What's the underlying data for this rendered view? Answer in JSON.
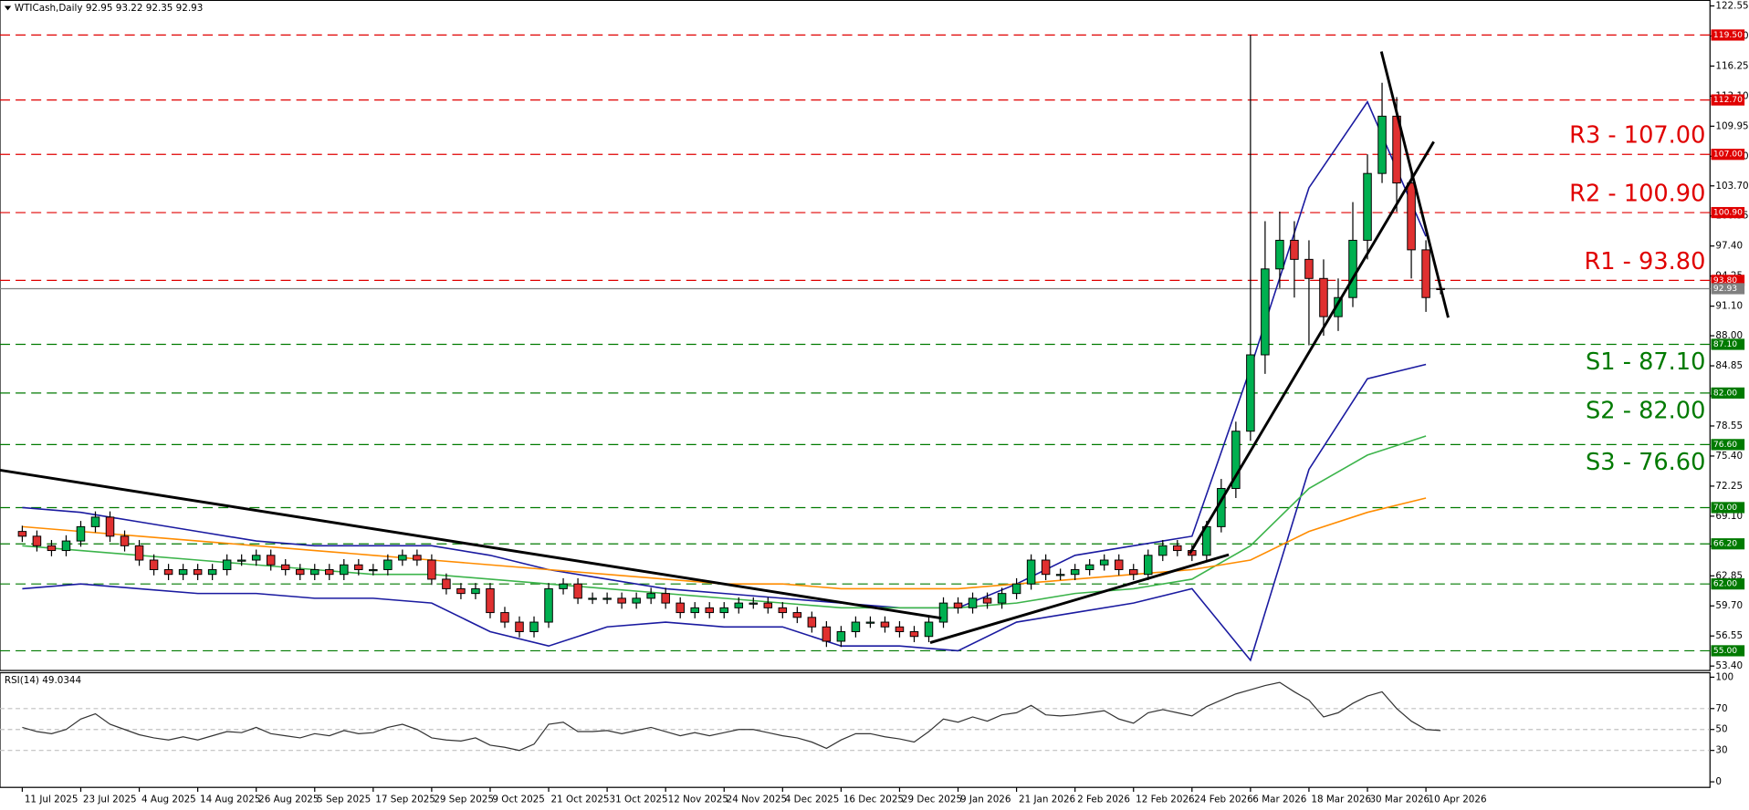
{
  "chart_data": {
    "type": "candlestick",
    "title": "WTICash,Daily  92.95 93.22 92.35 92.93",
    "categories": [
      "11 Jul 2025",
      null,
      null,
      null,
      "23 Jul 2025",
      null,
      null,
      null,
      "4 Aug 2025",
      null,
      null,
      null,
      "14 Aug 2025",
      null,
      null,
      null,
      "26 Aug 2025",
      null,
      null,
      null,
      "5 Sep 2025",
      null,
      null,
      null,
      "17 Sep 2025",
      null,
      null,
      null,
      "29 Sep 2025",
      null,
      null,
      null,
      "9 Oct 2025",
      null,
      null,
      null,
      "21 Oct 2025",
      null,
      null,
      null,
      "31 Oct 2025",
      null,
      null,
      null,
      "12 Nov 2025",
      null,
      null,
      null,
      "24 Nov 2025",
      null,
      null,
      null,
      "4 Dec 2025",
      null,
      null,
      null,
      "16 Dec 2025",
      null,
      null,
      null,
      "29 Dec 2025",
      null,
      null,
      null,
      "9 Jan 2026",
      null,
      null,
      null,
      "21 Jan 2026",
      null,
      null,
      null,
      "2 Feb 2026",
      null,
      null,
      null,
      "12 Feb 2026",
      null,
      null,
      null,
      "24 Feb 2026",
      null,
      null,
      null,
      "6 Mar 2026",
      null,
      null,
      null,
      "18 Mar 2026",
      null,
      null,
      null,
      "30 Mar 2026",
      null,
      null,
      null,
      "10 Apr 2026",
      null
    ],
    "open": [
      67.5,
      67,
      66,
      65.5,
      66.5,
      68,
      69,
      67,
      66,
      64.5,
      63.5,
      63,
      63.5,
      63,
      63.5,
      64.5,
      64.5,
      65,
      64,
      63.5,
      63,
      63.5,
      63,
      64,
      63.5,
      63.5,
      64.5,
      65,
      64.5,
      62.5,
      61.5,
      61,
      61.5,
      59,
      58,
      57,
      58,
      61.5,
      62,
      60.5,
      60.5,
      60.5,
      60,
      60.5,
      61,
      60,
      59,
      59.5,
      59,
      59.5,
      60,
      60,
      59.5,
      59,
      58.5,
      57.5,
      56,
      57,
      58,
      58,
      57.5,
      57,
      56.5,
      58,
      60,
      59.5,
      60.5,
      60,
      61,
      62,
      64.5,
      63,
      63,
      63.5,
      64,
      64.5,
      63.5,
      63,
      65,
      66,
      65.5,
      65,
      68,
      72,
      78,
      86,
      95,
      98,
      96,
      94,
      90,
      92,
      98,
      105,
      111,
      104,
      97,
      92.95
    ],
    "high": [
      68.1,
      67.6,
      66.6,
      67.1,
      68.6,
      69.6,
      69.6,
      67.6,
      66.6,
      65.1,
      64.1,
      64.1,
      64.1,
      64.1,
      65.1,
      65.1,
      65.6,
      65.6,
      64.6,
      64.1,
      64.1,
      64.1,
      64.6,
      64.6,
      64.1,
      65.1,
      65.6,
      65.6,
      65.1,
      63.1,
      62.1,
      62.1,
      62.1,
      59.6,
      58.6,
      58.6,
      62.1,
      62.6,
      62.6,
      61.1,
      61.1,
      61.1,
      61.1,
      61.6,
      61.6,
      60.6,
      60.1,
      60.1,
      60.1,
      60.6,
      60.6,
      60.6,
      60.1,
      59.6,
      59.1,
      58.1,
      57.6,
      58.6,
      58.6,
      58.6,
      58.1,
      57.6,
      58.6,
      60.6,
      60.6,
      61.1,
      61.1,
      61.6,
      62.6,
      65.1,
      65.1,
      63.6,
      64.1,
      64.6,
      65.1,
      65.1,
      64.1,
      65.6,
      66.6,
      66.6,
      66.1,
      68.6,
      73,
      79,
      119.5,
      100,
      101,
      100,
      98,
      96,
      94,
      102,
      107,
      114.5,
      113,
      105,
      98,
      93.22
    ],
    "low": [
      66.4,
      65.4,
      64.9,
      64.9,
      65.9,
      67.4,
      66.4,
      65.4,
      63.9,
      62.9,
      62.4,
      62.4,
      62.4,
      62.4,
      62.9,
      63.9,
      63.9,
      63.4,
      62.9,
      62.4,
      62.4,
      62.4,
      62.4,
      62.9,
      62.9,
      62.9,
      63.9,
      63.9,
      61.9,
      60.9,
      60.4,
      60.4,
      58.4,
      57.4,
      56.4,
      56.4,
      57.4,
      60.9,
      59.9,
      59.9,
      59.9,
      59.4,
      59.4,
      59.9,
      59.4,
      58.4,
      58.4,
      58.4,
      58.4,
      58.9,
      59.4,
      58.9,
      58.4,
      57.9,
      56.9,
      55.4,
      55.4,
      56.4,
      57.4,
      56.9,
      56.4,
      55.9,
      55.9,
      57.4,
      58.9,
      58.9,
      59.4,
      59.4,
      60.4,
      61.4,
      62.4,
      62.4,
      62.4,
      62.9,
      63.4,
      62.9,
      62.4,
      62.4,
      64.4,
      64.9,
      64.4,
      64.4,
      67.4,
      71,
      77,
      84,
      93,
      92,
      87,
      88,
      88.5,
      91,
      96,
      104,
      101,
      94,
      90.5,
      92.35
    ],
    "close": [
      67,
      66,
      65.5,
      66.5,
      68,
      69,
      67,
      66,
      64.5,
      63.5,
      63,
      63.5,
      63,
      63.5,
      64.5,
      64.5,
      65,
      64,
      63.5,
      63,
      63.5,
      63,
      64,
      63.5,
      63.5,
      64.5,
      65,
      64.5,
      62.5,
      61.5,
      61,
      61.5,
      59,
      58,
      57,
      58,
      61.5,
      62,
      60.5,
      60.5,
      60.5,
      60,
      60.5,
      61,
      60,
      59,
      59.5,
      59,
      59.5,
      60,
      60,
      59.5,
      59,
      58.5,
      57.5,
      56,
      57,
      58,
      58,
      57.5,
      57,
      56.5,
      58,
      60,
      59.5,
      60.5,
      60,
      61,
      62,
      64.5,
      63,
      63,
      63.5,
      64,
      64.5,
      63.5,
      63,
      65,
      66,
      65.5,
      65,
      68,
      72,
      78,
      86,
      95,
      98,
      96,
      94,
      90,
      92,
      98,
      105,
      111,
      104,
      97,
      92,
      92.93
    ],
    "up_color": "#00b050",
    "down_color": "#e03030",
    "ylim": [
      53.4,
      122.55
    ],
    "yticks": [
      {
        "value": 53.4,
        "label": "53.40"
      },
      {
        "value": 56.55,
        "label": "56.55"
      },
      {
        "value": 59.7,
        "label": "59.70"
      },
      {
        "value": 62.85,
        "label": "62.85"
      },
      {
        "value": 65.95,
        "label": "65.95"
      },
      {
        "value": 69.1,
        "label": "69.10"
      },
      {
        "value": 72.25,
        "label": "72.25"
      },
      {
        "value": 75.4,
        "label": "75.40"
      },
      {
        "value": 78.55,
        "label": "78.55"
      },
      {
        "value": 81.7,
        "label": "81.70"
      },
      {
        "value": 84.85,
        "label": "84.85"
      },
      {
        "value": 88,
        "label": "88.00"
      },
      {
        "value": 91.1,
        "label": "91.10"
      },
      {
        "value": 94.25,
        "label": "94.25"
      },
      {
        "value": 97.4,
        "label": "97.40"
      },
      {
        "value": 100.55,
        "label": "100.55"
      },
      {
        "value": 103.7,
        "label": "103.70"
      },
      {
        "value": 106.8,
        "label": "106.80"
      },
      {
        "value": 109.95,
        "label": "109.95"
      },
      {
        "value": 113.1,
        "label": "113.10"
      },
      {
        "value": 116.25,
        "label": "116.25"
      },
      {
        "value": 119.4,
        "label": "119.40"
      },
      {
        "value": 122.55,
        "label": "122.55"
      }
    ],
    "levels": [
      {
        "value": 119.5,
        "label": "119.50",
        "color": "#e00000"
      },
      {
        "value": 112.7,
        "label": "112.70",
        "color": "#e00000"
      },
      {
        "value": 107,
        "label": "107.00",
        "color": "#e00000",
        "annotation": "R3 - 107.00"
      },
      {
        "value": 100.9,
        "label": "100.90",
        "color": "#e00000",
        "annotation": "R2 - 100.90"
      },
      {
        "value": 93.8,
        "label": "93.80",
        "color": "#e00000",
        "annotation": "R1 - 93.80"
      },
      {
        "value": 87.1,
        "label": "87.10",
        "color": "#007a00",
        "annotation": "S1 - 87.10"
      },
      {
        "value": 82,
        "label": "82.00",
        "color": "#007a00",
        "annotation": "S2 - 82.00"
      },
      {
        "value": 76.6,
        "label": "76.60",
        "color": "#007a00",
        "annotation": "S3 - 76.60"
      },
      {
        "value": 70,
        "label": "70.00",
        "color": "#007a00"
      },
      {
        "value": 66.2,
        "label": "66.20",
        "color": "#007a00"
      },
      {
        "value": 62,
        "label": "62.00",
        "color": "#007a00"
      },
      {
        "value": 55,
        "label": "55.00",
        "color": "#007a00"
      }
    ],
    "current": {
      "value": 92.93,
      "label": "92.93",
      "color": "#808080"
    },
    "indicators": [
      {
        "color": "#1a1aa0",
        "values": [
          70,
          69.5,
          68.5,
          67.5,
          66.5,
          66,
          66,
          66,
          65,
          63.5,
          62.5,
          61.5,
          61,
          60.5,
          60,
          59.5,
          59.5,
          62,
          65,
          66,
          67,
          84.6,
          103.5,
          112.5,
          98.4
        ]
      },
      {
        "color": "#1a1aa0",
        "values": [
          61.5,
          62,
          61.5,
          61,
          61,
          60.5,
          60.5,
          60,
          57,
          55.5,
          57.5,
          58,
          57.5,
          57.5,
          55.5,
          55.5,
          55,
          58,
          59,
          60,
          61.5,
          54,
          74,
          83.5,
          85
        ]
      },
      {
        "color": "#3cb44b",
        "values": [
          66,
          65.5,
          65,
          64.5,
          64,
          63.5,
          63,
          63,
          62.5,
          62,
          61.5,
          61,
          60.5,
          60,
          59.5,
          59.5,
          59.5,
          60,
          61,
          61.5,
          62.5,
          66,
          72,
          75.5,
          77.5
        ]
      },
      {
        "color": "#ff8c00",
        "values": [
          68,
          67.5,
          67,
          66.5,
          66,
          65.5,
          65,
          64.5,
          64,
          63.5,
          63,
          62.5,
          62,
          62,
          61.5,
          61.5,
          61.5,
          62,
          62.5,
          63,
          63.5,
          64.5,
          67.5,
          69.5,
          71
        ]
      }
    ],
    "rsi": {
      "type": "line",
      "title": "RSI(14) 49.0344",
      "color": "#333333",
      "ylim": [
        0,
        100
      ],
      "yticks": [
        0,
        30,
        50,
        70,
        100
      ],
      "values": [
        52,
        48,
        46,
        50,
        60,
        65,
        55,
        50,
        45,
        42,
        40,
        43,
        40,
        44,
        48,
        47,
        52,
        46,
        44,
        42,
        46,
        44,
        49,
        46,
        47,
        52,
        55,
        50,
        42,
        40,
        39,
        42,
        35,
        33,
        30,
        36,
        55,
        57,
        48,
        48,
        49,
        46,
        49,
        52,
        48,
        44,
        47,
        44,
        47,
        50,
        50,
        47,
        44,
        42,
        38,
        32,
        40,
        46,
        46,
        43,
        41,
        38,
        48,
        60,
        57,
        62,
        58,
        64,
        66,
        73,
        64,
        63,
        64,
        66,
        68,
        60,
        56,
        66,
        69,
        66,
        63,
        72,
        78,
        84,
        88,
        92,
        95,
        86,
        78,
        62,
        66,
        75,
        82,
        86,
        70,
        58,
        50,
        49.0344
      ]
    }
  }
}
